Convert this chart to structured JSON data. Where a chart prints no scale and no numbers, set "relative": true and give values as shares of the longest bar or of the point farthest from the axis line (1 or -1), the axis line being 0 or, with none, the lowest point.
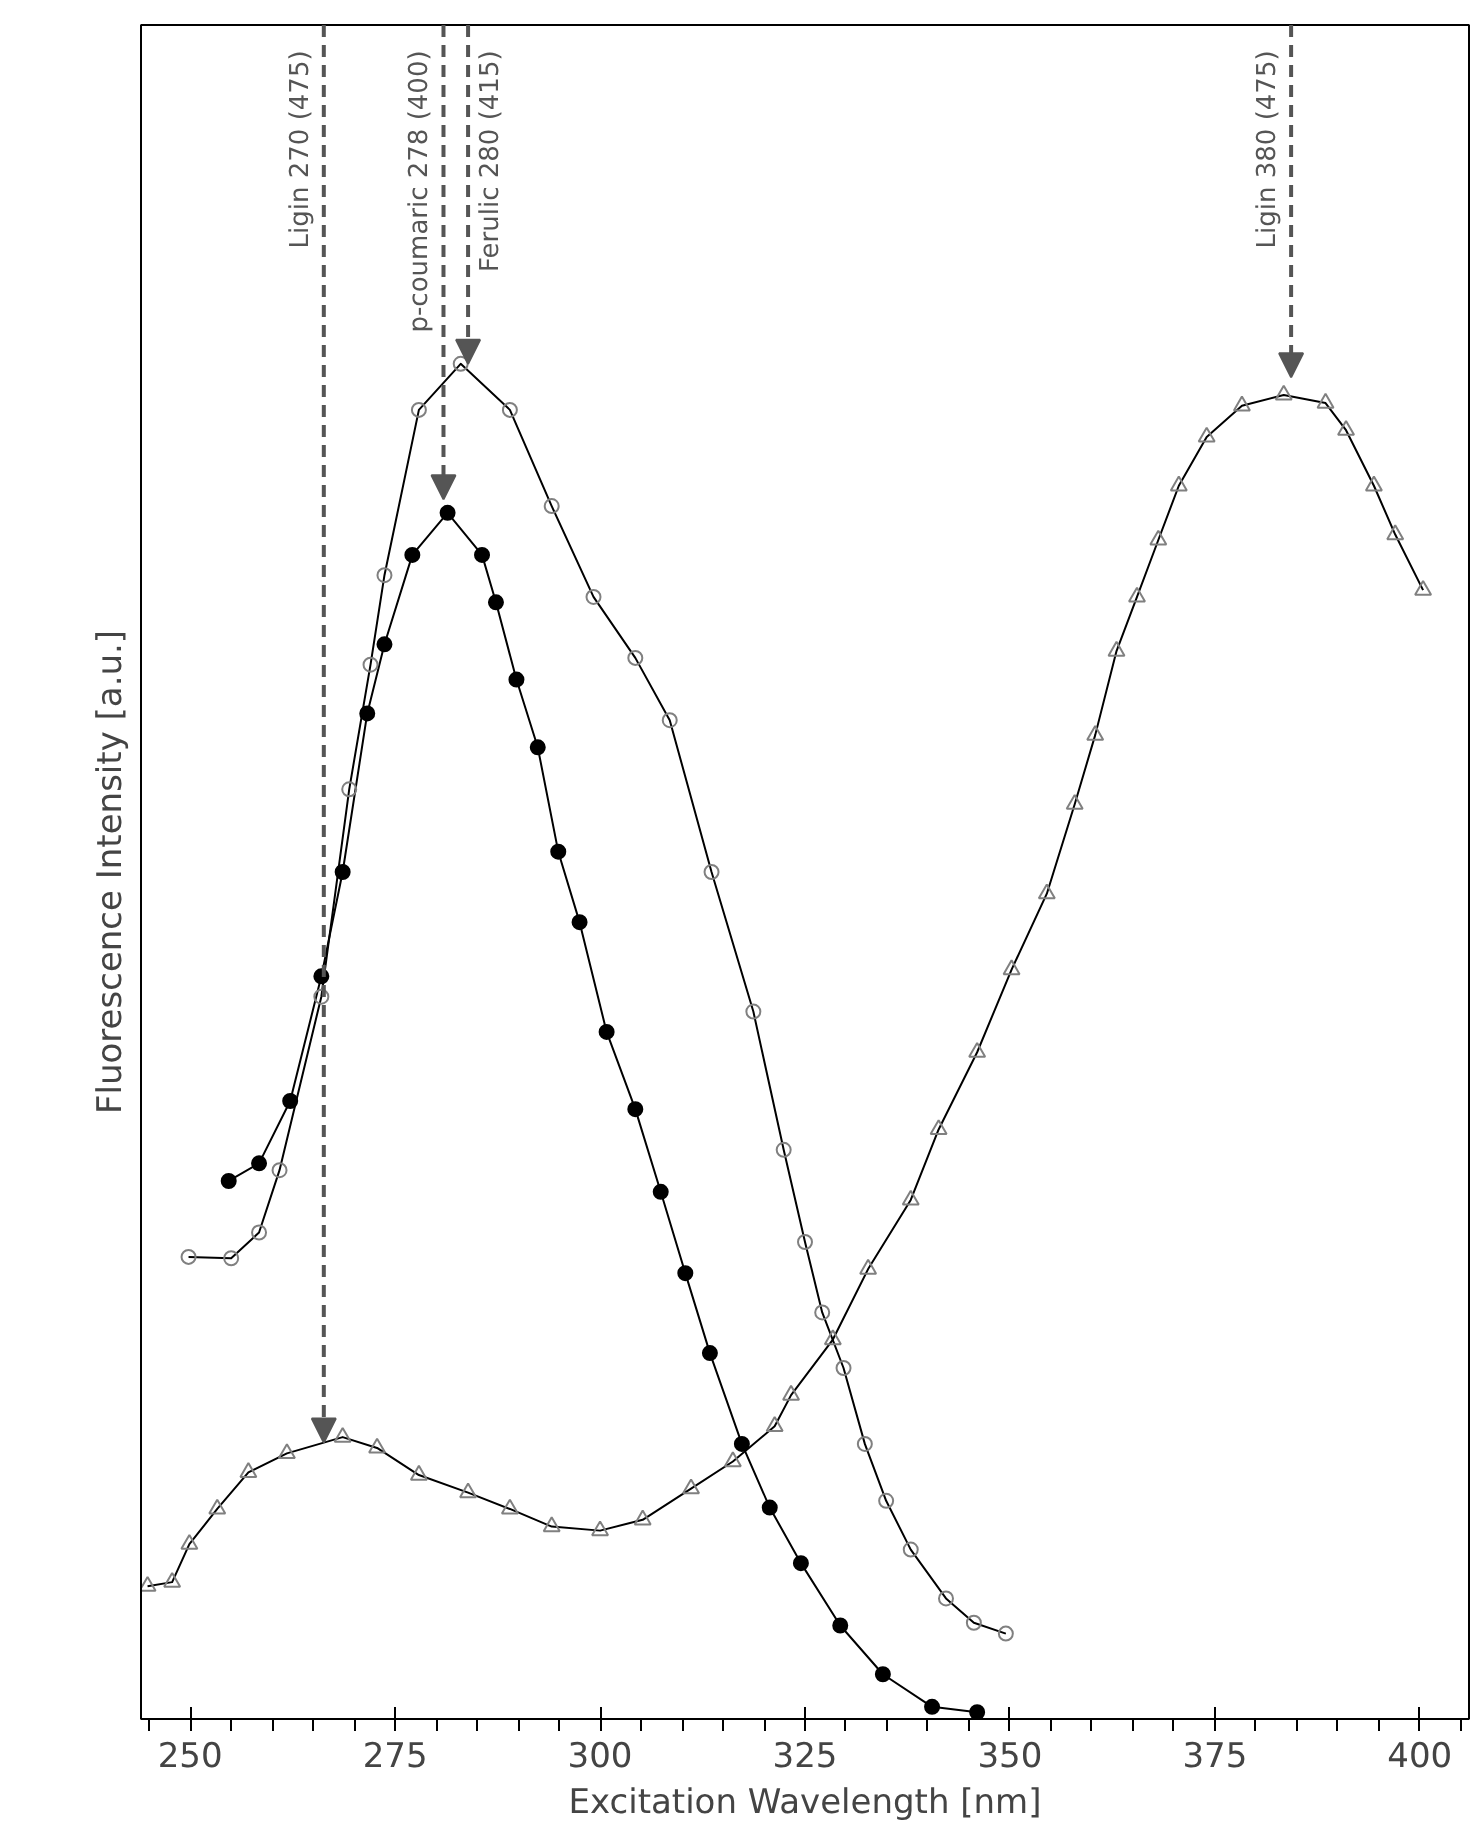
{
  "chart_data": {
    "type": "line",
    "xlabel": "Excitation Wavelength [nm]",
    "ylabel": "Fluorescence Intensity [a.u.]",
    "relative": true,
    "xlim": [
      244,
      406
    ],
    "xticks": [
      250,
      275,
      300,
      325,
      350,
      375,
      400
    ],
    "grid": false,
    "line_style": "solid",
    "series": [
      {
        "color": "#000000",
        "marker": "circle",
        "x": [
          254.7,
          258.4,
          262.2,
          266.0,
          268.6,
          271.6,
          273.7,
          277.1,
          281.4,
          285.6,
          287.3,
          289.8,
          292.4,
          294.9,
          297.5,
          300.8,
          304.3,
          307.4,
          310.4,
          313.4,
          317.3,
          320.7,
          324.5,
          329.3,
          334.5,
          340.5,
          346.0
        ],
        "values": [
          0.397,
          0.41,
          0.456,
          0.548,
          0.625,
          0.742,
          0.793,
          0.859,
          0.89,
          0.859,
          0.824,
          0.767,
          0.717,
          0.64,
          0.588,
          0.507,
          0.45,
          0.389,
          0.329,
          0.27,
          0.203,
          0.156,
          0.115,
          0.069,
          0.033,
          0.009,
          0.005
        ]
      },
      {
        "color": "#808080",
        "marker": "circle",
        "x": [
          249.8,
          255.0,
          258.4,
          260.9,
          266.0,
          269.4,
          272.0,
          273.7,
          277.9,
          283.0,
          289.0,
          294.1,
          299.2,
          304.3,
          308.5,
          313.6,
          318.7,
          322.4,
          325.0,
          327.1,
          329.7,
          332.3,
          334.9,
          337.9,
          342.2,
          345.6,
          349.5
        ],
        "values": [
          0.341,
          0.34,
          0.359,
          0.405,
          0.533,
          0.686,
          0.778,
          0.844,
          0.966,
          1.0,
          0.966,
          0.895,
          0.828,
          0.783,
          0.737,
          0.625,
          0.522,
          0.42,
          0.352,
          0.3,
          0.259,
          0.203,
          0.161,
          0.125,
          0.089,
          0.071,
          0.063
        ]
      },
      {
        "color": "#808080",
        "marker": "triangle",
        "x": [
          244.8,
          247.8,
          249.9,
          253.3,
          257.1,
          261.8,
          268.6,
          272.8,
          277.9,
          283.9,
          289.0,
          294.1,
          300.0,
          305.2,
          311.1,
          316.2,
          321.3,
          323.3,
          328.4,
          332.7,
          337.9,
          341.3,
          346.0,
          350.2,
          354.5,
          357.9,
          360.4,
          363.0,
          365.5,
          368.1,
          370.6,
          374.0,
          378.3,
          383.4,
          388.5,
          391.0,
          394.4,
          397.0,
          400.4
        ],
        "values": [
          0.098,
          0.101,
          0.129,
          0.155,
          0.182,
          0.196,
          0.208,
          0.2,
          0.18,
          0.167,
          0.155,
          0.142,
          0.139,
          0.147,
          0.17,
          0.19,
          0.216,
          0.239,
          0.28,
          0.332,
          0.383,
          0.435,
          0.492,
          0.553,
          0.609,
          0.675,
          0.726,
          0.788,
          0.828,
          0.87,
          0.91,
          0.946,
          0.969,
          0.977,
          0.971,
          0.951,
          0.91,
          0.874,
          0.833
        ]
      }
    ],
    "annotations": [
      {
        "text": "Ligin 270 (475)",
        "x": 266.3,
        "y": 0.204
      },
      {
        "text": "p-coumaric 278 (400)",
        "x": 280.9,
        "y": 0.9
      },
      {
        "text": "Ferulic 280 (415)",
        "x": 283.9,
        "y": 1.0
      },
      {
        "text": "Ligin 380 (475)",
        "x": 384.3,
        "y": 0.99
      }
    ]
  }
}
